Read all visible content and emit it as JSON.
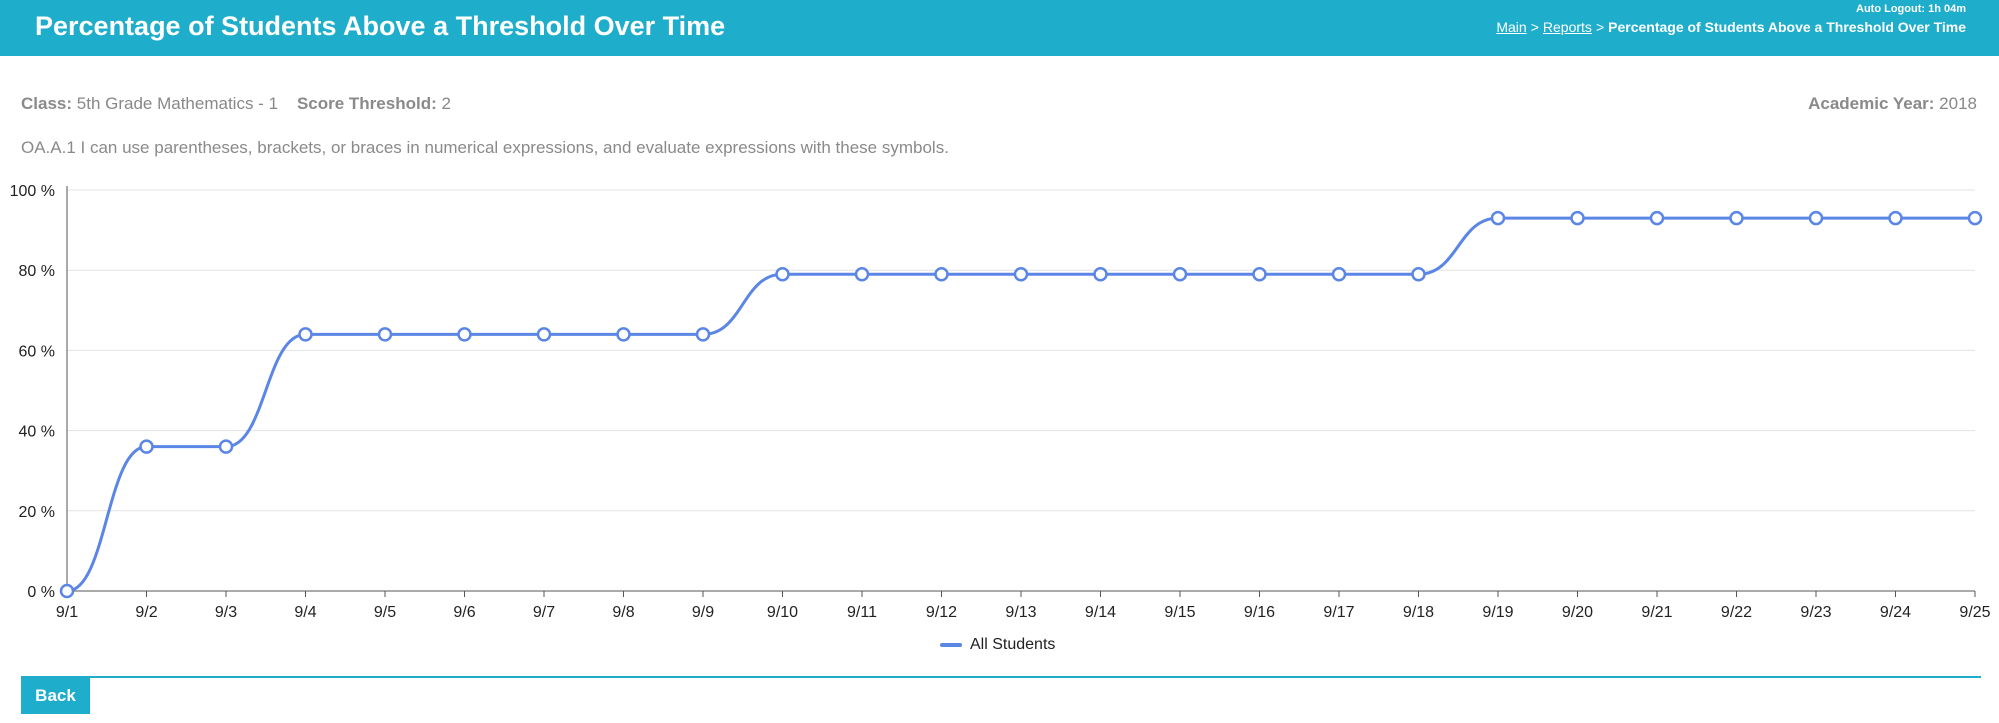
{
  "header": {
    "title": "Percentage of Students Above a Threshold Over Time",
    "auto_logout": "Auto Logout: 1h 04m",
    "breadcrumb": {
      "main": "Main",
      "separator": ">",
      "reports": "Reports",
      "current": "Percentage of Students Above a Threshold Over Time"
    }
  },
  "info": {
    "class_label": "Class:",
    "class_value": "5th Grade Mathematics - 1",
    "threshold_label": "Score Threshold:",
    "threshold_value": "2",
    "year_label": "Academic Year:",
    "year_value": "2018"
  },
  "standard_text": "OA.A.1 I can use parentheses, brackets, or braces in numerical expressions, and evaluate expressions with these symbols.",
  "chart_data": {
    "type": "line",
    "categories": [
      "9/1",
      "9/2",
      "9/3",
      "9/4",
      "9/5",
      "9/6",
      "9/7",
      "9/8",
      "9/9",
      "9/10",
      "9/11",
      "9/12",
      "9/13",
      "9/14",
      "9/15",
      "9/16",
      "9/17",
      "9/18",
      "9/19",
      "9/20",
      "9/21",
      "9/22",
      "9/23",
      "9/24",
      "9/25"
    ],
    "series": [
      {
        "name": "All Students",
        "values": [
          0,
          36,
          36,
          64,
          64,
          64,
          64,
          64,
          64,
          79,
          79,
          79,
          79,
          79,
          79,
          79,
          79,
          79,
          93,
          93,
          93,
          93,
          93,
          93,
          93
        ],
        "color": "#5b86e5"
      }
    ],
    "y_ticks": [
      "0 %",
      "20 %",
      "40 %",
      "60 %",
      "80 %",
      "100 %"
    ],
    "ylim": [
      0,
      100
    ],
    "grid": true,
    "legend": "bottom-center"
  },
  "legend_label": "All Students",
  "back_label": "Back",
  "colors": {
    "header": "#1eaecb",
    "line": "#5b86e5"
  }
}
